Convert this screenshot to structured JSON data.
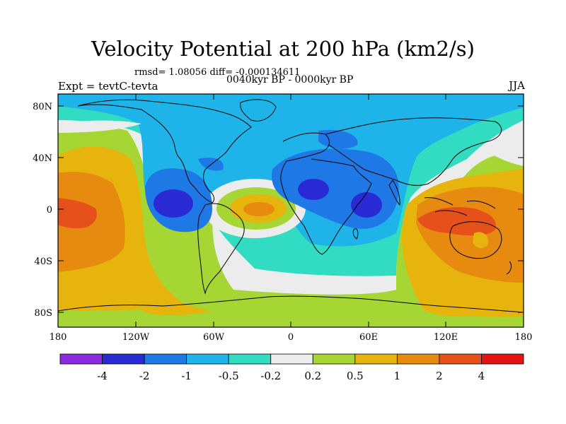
{
  "title": "Velocity Potential at 200 hPa (km2/s)",
  "stats": "rmsd= 1.08056 diff= -0.000134611",
  "experiment": "Expt = tevtC-tevta",
  "period": "0040kyr BP - 0000kyr BP",
  "season": "JJA",
  "lat_labels": [
    "80N",
    "40N",
    "0",
    "40S",
    "80S"
  ],
  "lon_labels": [
    "180",
    "120W",
    "60W",
    "0",
    "60E",
    "120E",
    "180"
  ],
  "colorbar": {
    "colors": [
      "#8a2be2",
      "#2a2ad4",
      "#1e78e6",
      "#1eb4ea",
      "#32dcc2",
      "#ececec",
      "#a6d634",
      "#e6b40c",
      "#e68a10",
      "#e6501a",
      "#e21414"
    ],
    "labels": [
      "-4",
      "-2",
      "-1",
      "-0.5",
      "-0.2",
      "0.2",
      "0.5",
      "1",
      "2",
      "4"
    ]
  },
  "chart_data": {
    "type": "heatmap",
    "variable": "Velocity Potential at 200 hPa",
    "units": "km2/s",
    "levels": [
      -4,
      -2,
      -1,
      -0.5,
      -0.2,
      0.2,
      0.5,
      1,
      2,
      4
    ],
    "features": [
      {
        "region": "tropical eastern Pacific / Central America",
        "sign": "negative",
        "min_level": -2
      },
      {
        "region": "north Africa",
        "sign": "negative",
        "min_level": -2
      },
      {
        "region": "Arabian Sea / Horn of Africa",
        "sign": "negative",
        "min_level": -2
      },
      {
        "region": "tropical Atlantic",
        "sign": "positive",
        "max_level": 2
      },
      {
        "region": "central Pacific",
        "sign": "positive",
        "max_level": 4
      },
      {
        "region": "maritime continent / Indian Ocean",
        "sign": "positive",
        "max_level": 4
      }
    ]
  }
}
